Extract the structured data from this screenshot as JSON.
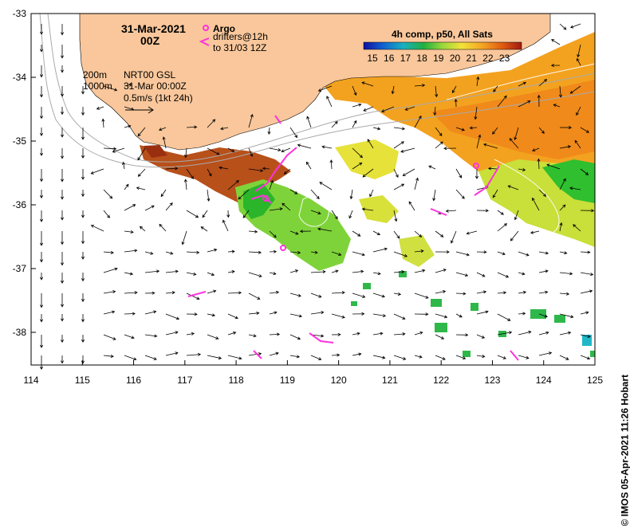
{
  "map": {
    "date_line1": "31-Mar-2021",
    "date_line2": "00Z",
    "argo_label": "Argo",
    "drifters_line1": "drifters@12h",
    "drifters_line2": "to 31/03 12Z",
    "depth_200": "200m",
    "depth_1000": "1000m",
    "gsl_line1": "NRT00 GSL",
    "gsl_line2": "31-Mar 00:00Z",
    "gsl_line3": "0.5m/s (1kt 24h)",
    "colorbar_title": "4h comp, p50, All Sats",
    "colorbar_ticks": [
      "15",
      "16",
      "17",
      "18",
      "19",
      "20",
      "21",
      "22",
      "23"
    ],
    "credit": "© IMOS 05-Apr-2021 11:26 Hobart",
    "lon_ticks": [
      "114",
      "115",
      "116",
      "117",
      "118",
      "119",
      "120",
      "121",
      "122",
      "123",
      "124",
      "125"
    ],
    "lat_ticks": [
      "-33",
      "-34",
      "-35",
      "-36",
      "-37",
      "-38"
    ],
    "colors": {
      "land": "#f9c79b",
      "sst_warm": "#f08a1a",
      "sst_orange": "#f5a623",
      "sst_yellow": "#f2e23a",
      "sst_green": "#9ad83a",
      "sst_dkgreen": "#2fbf2f",
      "sst_red": "#b03a10",
      "marker": "#ff33dd"
    }
  }
}
